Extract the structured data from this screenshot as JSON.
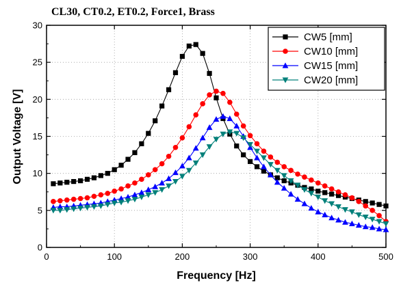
{
  "chart_data": {
    "type": "line",
    "title": "CL30, CT0.2, ET0.2, Force1, Brass",
    "xlabel": "Frequency [Hz]",
    "ylabel": "Output Voltage [V]",
    "xlim": [
      0,
      500
    ],
    "ylim": [
      0,
      30
    ],
    "xticks": [
      0,
      100,
      200,
      300,
      400,
      500
    ],
    "yticks": [
      0,
      5,
      10,
      15,
      20,
      25,
      30
    ],
    "grid": true,
    "legend_position": "top-right",
    "series": [
      {
        "name": "CW5 [mm]",
        "color": "#000000",
        "marker": "square",
        "x": [
          10,
          20,
          30,
          40,
          50,
          60,
          70,
          80,
          90,
          100,
          110,
          120,
          130,
          140,
          150,
          160,
          170,
          180,
          190,
          200,
          210,
          220,
          230,
          240,
          250,
          260,
          270,
          280,
          290,
          300,
          310,
          320,
          330,
          340,
          350,
          360,
          370,
          380,
          390,
          400,
          410,
          420,
          430,
          440,
          450,
          460,
          470,
          480,
          490,
          500
        ],
        "y": [
          8.6,
          8.7,
          8.8,
          8.9,
          9.0,
          9.2,
          9.4,
          9.7,
          10.0,
          10.5,
          11.1,
          11.9,
          12.8,
          14.0,
          15.4,
          17.1,
          19.1,
          21.3,
          23.6,
          25.8,
          27.2,
          27.4,
          26.2,
          23.5,
          20.2,
          17.4,
          15.3,
          13.7,
          12.5,
          11.6,
          10.9,
          10.3,
          9.8,
          9.4,
          9.0,
          8.7,
          8.4,
          8.1,
          7.9,
          7.6,
          7.4,
          7.2,
          7.0,
          6.8,
          6.6,
          6.4,
          6.2,
          6.0,
          5.8,
          5.6
        ]
      },
      {
        "name": "CW10 [mm]",
        "color": "#ff0000",
        "marker": "circle",
        "x": [
          10,
          20,
          30,
          40,
          50,
          60,
          70,
          80,
          90,
          100,
          110,
          120,
          130,
          140,
          150,
          160,
          170,
          180,
          190,
          200,
          210,
          220,
          230,
          240,
          250,
          260,
          270,
          280,
          290,
          300,
          310,
          320,
          330,
          340,
          350,
          360,
          370,
          380,
          390,
          400,
          410,
          420,
          430,
          440,
          450,
          460,
          470,
          480,
          490,
          500
        ],
        "y": [
          6.2,
          6.3,
          6.4,
          6.5,
          6.6,
          6.7,
          6.9,
          7.1,
          7.3,
          7.6,
          7.9,
          8.3,
          8.7,
          9.2,
          9.8,
          10.5,
          11.3,
          12.3,
          13.5,
          14.8,
          16.3,
          17.9,
          19.4,
          20.6,
          21.1,
          20.8,
          19.6,
          18.0,
          16.4,
          15.1,
          14.0,
          13.0,
          12.2,
          11.5,
          10.9,
          10.4,
          9.9,
          9.5,
          9.1,
          8.7,
          8.3,
          7.9,
          7.5,
          7.1,
          6.7,
          6.2,
          5.6,
          5.0,
          4.3,
          3.5
        ]
      },
      {
        "name": "CW15 [mm]",
        "color": "#0000ff",
        "marker": "triangle-up",
        "x": [
          10,
          20,
          30,
          40,
          50,
          60,
          70,
          80,
          90,
          100,
          110,
          120,
          130,
          140,
          150,
          160,
          170,
          180,
          190,
          200,
          210,
          220,
          230,
          240,
          250,
          260,
          270,
          280,
          290,
          300,
          310,
          320,
          330,
          340,
          350,
          360,
          370,
          380,
          390,
          400,
          410,
          420,
          430,
          440,
          450,
          460,
          470,
          480,
          490,
          500
        ],
        "y": [
          5.4,
          5.5,
          5.5,
          5.6,
          5.7,
          5.8,
          5.9,
          6.0,
          6.2,
          6.4,
          6.6,
          6.8,
          7.1,
          7.4,
          7.8,
          8.2,
          8.7,
          9.3,
          10.1,
          11.0,
          12.1,
          13.4,
          14.8,
          16.2,
          17.3,
          17.7,
          17.4,
          16.4,
          15.0,
          13.5,
          12.1,
          10.9,
          9.8,
          8.8,
          8.0,
          7.2,
          6.5,
          5.9,
          5.3,
          4.8,
          4.4,
          4.0,
          3.7,
          3.4,
          3.2,
          3.0,
          2.8,
          2.7,
          2.5,
          2.4
        ]
      },
      {
        "name": "CW20 [mm]",
        "color": "#00807a",
        "marker": "triangle-down",
        "x": [
          10,
          20,
          30,
          40,
          50,
          60,
          70,
          80,
          90,
          100,
          110,
          120,
          130,
          140,
          150,
          160,
          170,
          180,
          190,
          200,
          210,
          220,
          230,
          240,
          250,
          260,
          270,
          280,
          290,
          300,
          310,
          320,
          330,
          340,
          350,
          360,
          370,
          380,
          390,
          400,
          410,
          420,
          430,
          440,
          450,
          460,
          470,
          480,
          490,
          500
        ],
        "y": [
          5.0,
          5.0,
          5.1,
          5.2,
          5.3,
          5.4,
          5.5,
          5.6,
          5.8,
          6.0,
          6.1,
          6.3,
          6.5,
          6.8,
          7.1,
          7.4,
          7.8,
          8.3,
          8.9,
          9.6,
          10.4,
          11.4,
          12.5,
          13.6,
          14.6,
          15.3,
          15.6,
          15.4,
          14.8,
          13.9,
          13.0,
          12.1,
          11.2,
          10.4,
          9.7,
          9.0,
          8.4,
          7.8,
          7.3,
          6.8,
          6.3,
          5.9,
          5.5,
          5.1,
          4.8,
          4.4,
          4.1,
          3.8,
          3.5,
          3.2
        ]
      }
    ]
  }
}
